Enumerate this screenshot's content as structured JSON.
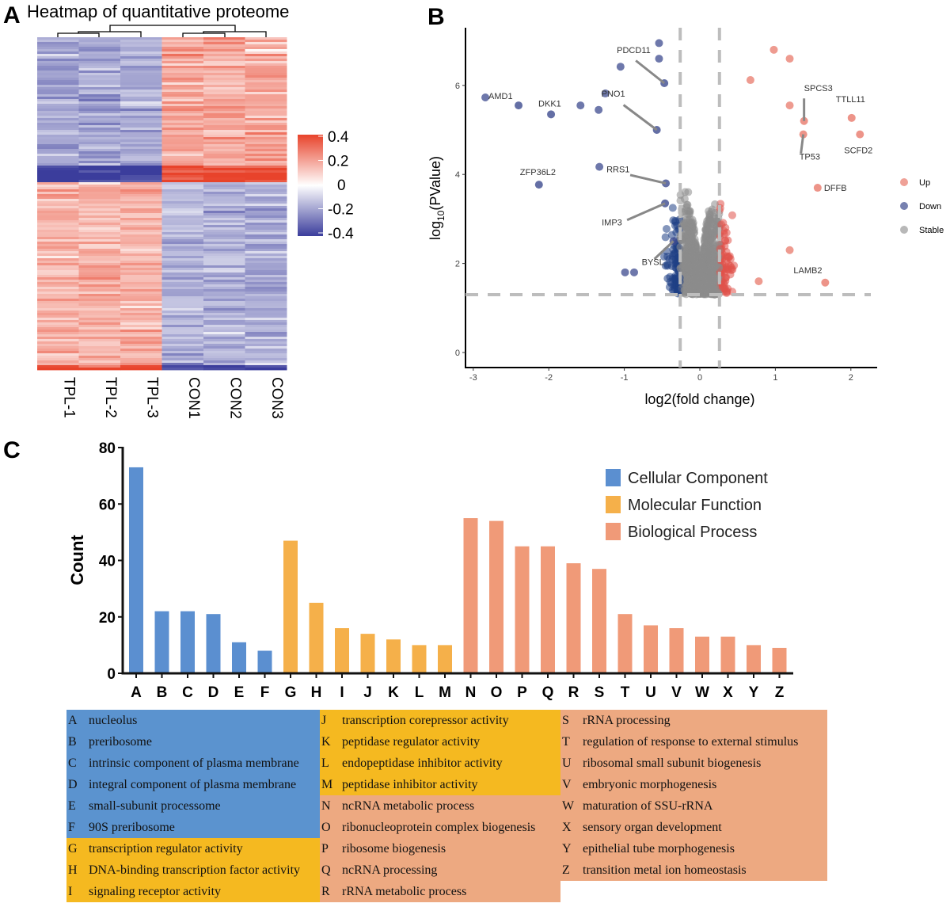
{
  "chart_data": [
    {
      "panel": "A",
      "type": "heatmap",
      "title": "Heatmap of quantitative proteome",
      "columns": [
        "TPL-1",
        "TPL-2",
        "TPL-3",
        "CON1",
        "CON2",
        "CON3"
      ],
      "colorbar": {
        "ticks": [
          "0.4",
          "0.2",
          "0",
          "-0.2",
          "-0.4"
        ],
        "range": [
          -0.4,
          0.4
        ],
        "low_color": "#3b3d9c",
        "mid_color": "#ffffff",
        "high_color": "#e8432b"
      },
      "pattern": "upper cluster: TPL low / CON high; lower cluster: TPL high / CON low"
    },
    {
      "panel": "B",
      "type": "scatter",
      "xlabel": "log2(fold change)",
      "ylabel_main": "log",
      "ylabel_sub": "10",
      "ylabel_rest": "(PValue)",
      "xlim": [
        -3.1,
        2.35
      ],
      "ylim": [
        -0.3,
        7.3
      ],
      "xticks": [
        "-3",
        "-2",
        "-1",
        "0",
        "1",
        "2"
      ],
      "yticks": [
        "0",
        "2",
        "4",
        "6"
      ],
      "thresholds": {
        "x": [
          -0.26,
          0.26
        ],
        "y": 1.3
      },
      "legend": [
        {
          "name": "Up",
          "color": "#e8796b"
        },
        {
          "name": "Down",
          "color": "#3d4b8f"
        },
        {
          "name": "Stable",
          "color": "#9a9a9a"
        }
      ],
      "labeled_points": [
        {
          "gene": "AMD1",
          "x": -2.4,
          "y": 5.55,
          "group": "Down"
        },
        {
          "gene": "DKK1",
          "x": -1.97,
          "y": 5.35,
          "group": "Down"
        },
        {
          "gene": "ZFP36L2",
          "x": -2.13,
          "y": 3.77,
          "group": "Down"
        },
        {
          "gene": "PDCD11",
          "x": -0.47,
          "y": 6.05,
          "group": "Down"
        },
        {
          "gene": "PNO1",
          "x": -0.57,
          "y": 5.0,
          "group": "Down"
        },
        {
          "gene": "RRS1",
          "x": -0.45,
          "y": 3.8,
          "group": "Down"
        },
        {
          "gene": "IMP3",
          "x": -0.46,
          "y": 3.35,
          "group": "Down"
        },
        {
          "gene": "BYSL",
          "x": -0.35,
          "y": 2.5,
          "group": "Down"
        },
        {
          "gene": "SPCS3",
          "x": 1.38,
          "y": 5.2,
          "group": "Up"
        },
        {
          "gene": "TTLL11",
          "x": 2.01,
          "y": 5.27,
          "group": "Up"
        },
        {
          "gene": "SCFD2",
          "x": 2.12,
          "y": 4.9,
          "group": "Up"
        },
        {
          "gene": "TP53",
          "x": 1.37,
          "y": 4.9,
          "group": "Up"
        },
        {
          "gene": "DFFB",
          "x": 1.56,
          "y": 3.7,
          "group": "Up"
        },
        {
          "gene": "LAMB2",
          "x": 1.66,
          "y": 1.57,
          "group": "Up"
        }
      ],
      "other_points": [
        {
          "x": -2.84,
          "y": 5.73,
          "group": "Down"
        },
        {
          "x": -1.58,
          "y": 5.55,
          "group": "Down"
        },
        {
          "x": -1.34,
          "y": 5.45,
          "group": "Down"
        },
        {
          "x": -1.25,
          "y": 5.82,
          "group": "Down"
        },
        {
          "x": -1.05,
          "y": 6.42,
          "group": "Down"
        },
        {
          "x": -0.54,
          "y": 6.95,
          "group": "Down"
        },
        {
          "x": -0.54,
          "y": 6.6,
          "group": "Down"
        },
        {
          "x": -1.33,
          "y": 4.17,
          "group": "Down"
        },
        {
          "x": -0.99,
          "y": 1.8,
          "group": "Down"
        },
        {
          "x": -0.87,
          "y": 1.8,
          "group": "Down"
        },
        {
          "x": 0.98,
          "y": 6.8,
          "group": "Up"
        },
        {
          "x": 1.19,
          "y": 6.6,
          "group": "Up"
        },
        {
          "x": 0.67,
          "y": 6.12,
          "group": "Up"
        },
        {
          "x": 1.19,
          "y": 5.55,
          "group": "Up"
        },
        {
          "x": 1.19,
          "y": 2.3,
          "group": "Up"
        },
        {
          "x": 0.78,
          "y": 1.6,
          "group": "Up"
        }
      ]
    },
    {
      "panel": "C",
      "type": "bar",
      "ylabel": "Count",
      "ylim": [
        0,
        80
      ],
      "yticks": [
        "0",
        "20",
        "40",
        "60",
        "80"
      ],
      "categories": [
        "A",
        "B",
        "C",
        "D",
        "E",
        "F",
        "G",
        "H",
        "I",
        "J",
        "K",
        "L",
        "M",
        "N",
        "O",
        "P",
        "Q",
        "R",
        "S",
        "T",
        "U",
        "V",
        "W",
        "X",
        "Y",
        "Z"
      ],
      "values": [
        73,
        22,
        22,
        21,
        11,
        8,
        47,
        25,
        16,
        14,
        12,
        10,
        10,
        55,
        54,
        45,
        45,
        39,
        37,
        21,
        17,
        16,
        13,
        13,
        10,
        9
      ],
      "groups": [
        "CC",
        "CC",
        "CC",
        "CC",
        "CC",
        "CC",
        "MF",
        "MF",
        "MF",
        "MF",
        "MF",
        "MF",
        "MF",
        "BP",
        "BP",
        "BP",
        "BP",
        "BP",
        "BP",
        "BP",
        "BP",
        "BP",
        "BP",
        "BP",
        "BP",
        "BP"
      ],
      "legend": [
        {
          "key": "CC",
          "name": "Cellular Component",
          "color": "#5b8fd0"
        },
        {
          "key": "MF",
          "name": "Molecular Function",
          "color": "#f5b04a"
        },
        {
          "key": "BP",
          "name": "Biological Process",
          "color": "#f09a78"
        }
      ]
    }
  ],
  "panel_labels": [
    "A",
    "B",
    "C"
  ],
  "go_terms": [
    {
      "k": "A",
      "t": "nucleolus",
      "g": "CC"
    },
    {
      "k": "B",
      "t": "preribosome",
      "g": "CC"
    },
    {
      "k": "C",
      "t": "intrinsic component of plasma membrane",
      "g": "CC"
    },
    {
      "k": "D",
      "t": "integral component of plasma membrane",
      "g": "CC"
    },
    {
      "k": "E",
      "t": "small-subunit processome",
      "g": "CC"
    },
    {
      "k": "F",
      "t": "90S preribosome",
      "g": "CC"
    },
    {
      "k": "G",
      "t": "transcription regulator activity",
      "g": "MF"
    },
    {
      "k": "H",
      "t": "DNA-binding transcription factor activity",
      "g": "MF"
    },
    {
      "k": "I",
      "t": "signaling receptor activity",
      "g": "MF"
    },
    {
      "k": "J",
      "t": "transcription corepressor activity",
      "g": "MF"
    },
    {
      "k": "K",
      "t": "peptidase regulator activity",
      "g": "MF"
    },
    {
      "k": "L",
      "t": "endopeptidase inhibitor activity",
      "g": "MF"
    },
    {
      "k": "M",
      "t": "peptidase inhibitor activity",
      "g": "MF"
    },
    {
      "k": "N",
      "t": "ncRNA metabolic process",
      "g": "BP"
    },
    {
      "k": "O",
      "t": "ribonucleoprotein complex biogenesis",
      "g": "BP"
    },
    {
      "k": "P",
      "t": "ribosome biogenesis",
      "g": "BP"
    },
    {
      "k": "Q",
      "t": "ncRNA processing",
      "g": "BP"
    },
    {
      "k": "R",
      "t": "rRNA metabolic process",
      "g": "BP"
    },
    {
      "k": "S",
      "t": "rRNA processing",
      "g": "BP"
    },
    {
      "k": "T",
      "t": "regulation of response to external stimulus",
      "g": "BP"
    },
    {
      "k": "U",
      "t": "ribosomal small subunit biogenesis",
      "g": "BP"
    },
    {
      "k": "V",
      "t": "embryonic morphogenesis",
      "g": "BP"
    },
    {
      "k": "W",
      "t": "maturation of SSU-rRNA",
      "g": "BP"
    },
    {
      "k": "X",
      "t": "sensory organ development",
      "g": "BP"
    },
    {
      "k": "Y",
      "t": "epithelial tube morphogenesis",
      "g": "BP"
    },
    {
      "k": "Z",
      "t": "transition metal ion homeostasis",
      "g": "BP"
    }
  ],
  "table_colors": {
    "CC": "#5b93cf",
    "MF": "#f5b920",
    "BP": "#eda981"
  }
}
